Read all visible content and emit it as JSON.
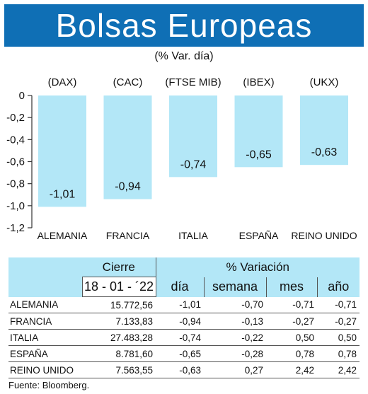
{
  "header": {
    "title": "Bolsas Europeas",
    "subtitle": "(% Var. día)"
  },
  "chart_data": {
    "type": "bar",
    "categories": [
      "ALEMANIA",
      "FRANCIA",
      "ITALIA",
      "ESPAÑA",
      "REINO UNIDO"
    ],
    "index_labels": [
      "(DAX)",
      "(CAC)",
      "(FTSE MIB)",
      "(IBEX)",
      "(UKX)"
    ],
    "values": [
      -1.01,
      -0.94,
      -0.74,
      -0.65,
      -0.63
    ],
    "value_labels": [
      "-1,01",
      "-0,94",
      "-0,74",
      "-0,65",
      "-0,63"
    ],
    "yticks": [
      "0",
      "-0,2",
      "-0,4",
      "-0,6",
      "-0,8",
      "-1,0",
      "-1,2"
    ],
    "ylim": [
      -1.2,
      0
    ],
    "bar_color": "#b3e7f7"
  },
  "table": {
    "group_headers": {
      "close": "Cierre",
      "change": "% Variación"
    },
    "date": "18 - 01 - ´22",
    "sub_headers": [
      "día",
      "semana",
      "mes",
      "año"
    ],
    "rows": [
      {
        "name": "ALEMANIA",
        "close": "15.772,56",
        "dia": "-1,01",
        "semana": "-0,70",
        "mes": "-0,71",
        "anio": "-0,71"
      },
      {
        "name": "FRANCIA",
        "close": "7.133,83",
        "dia": "-0,94",
        "semana": "-0,13",
        "mes": "-0,27",
        "anio": "-0,27"
      },
      {
        "name": "ITALIA",
        "close": "27.483,28",
        "dia": "-0,74",
        "semana": "-0,22",
        "mes": "0,50",
        "anio": "0,50"
      },
      {
        "name": "ESPAÑA",
        "close": "8.781,60",
        "dia": "-0,65",
        "semana": "-0,28",
        "mes": "0,78",
        "anio": "0,78"
      },
      {
        "name": "REINO UNIDO",
        "close": "7.563,55",
        "dia": "-0,63",
        "semana": "0,27",
        "mes": "2,42",
        "anio": "2,42"
      }
    ]
  },
  "footer": {
    "source": "Fuente: Bloomberg."
  }
}
